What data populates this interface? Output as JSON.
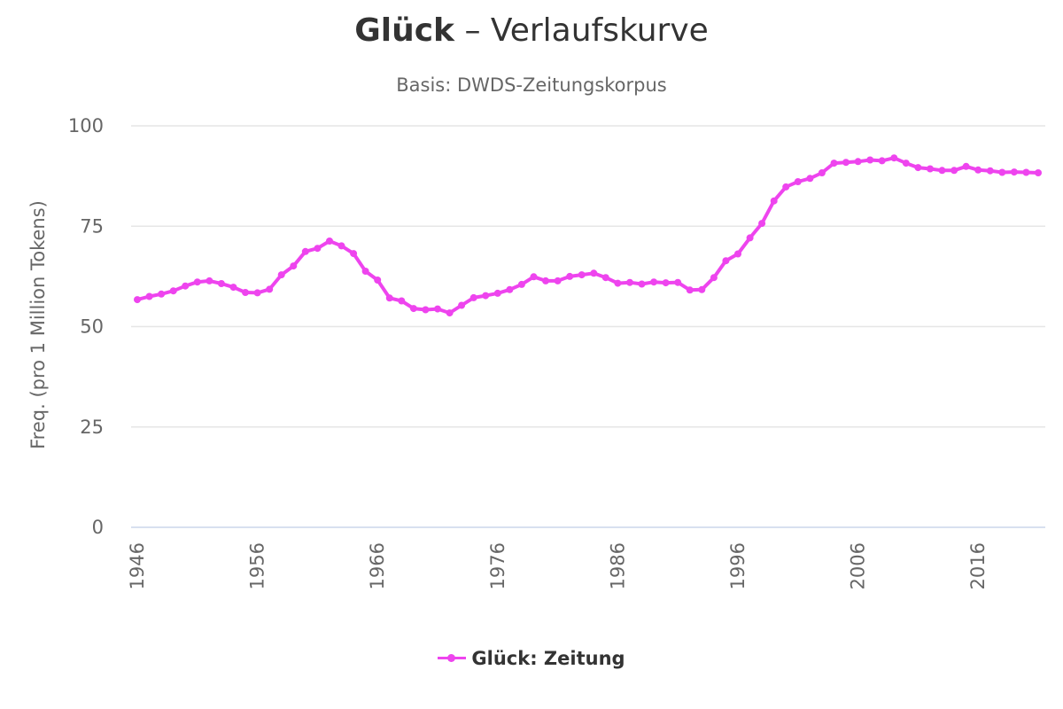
{
  "title": {
    "word": "Glück",
    "rest": " – Verlaufskurve"
  },
  "subtitle": "Basis: DWDS-Zeitungskorpus",
  "legend": {
    "label": "Glück: Zeitung"
  },
  "colors": {
    "series": "#ee44ee",
    "grid": "#e6e6e6",
    "axis": "#ccd6eb",
    "text": "#666666"
  },
  "chart_data": {
    "type": "line",
    "title": "Glück – Verlaufskurve",
    "subtitle": "Basis: DWDS-Zeitungskorpus",
    "xlabel": "",
    "ylabel": "Freq. (pro 1 Million Tokens)",
    "ylim": [
      0,
      100
    ],
    "xlim": [
      1946,
      2021
    ],
    "yticks": [
      0,
      25,
      50,
      75,
      100
    ],
    "xticks": [
      1946,
      1956,
      1966,
      1976,
      1986,
      1996,
      2006,
      2016
    ],
    "grid": true,
    "legend_position": "bottom",
    "series": [
      {
        "name": "Glück: Zeitung",
        "x": [
          1946,
          1947,
          1948,
          1949,
          1950,
          1951,
          1952,
          1953,
          1954,
          1955,
          1956,
          1957,
          1958,
          1959,
          1960,
          1961,
          1962,
          1963,
          1964,
          1965,
          1966,
          1967,
          1968,
          1969,
          1970,
          1971,
          1972,
          1973,
          1974,
          1975,
          1976,
          1977,
          1978,
          1979,
          1980,
          1981,
          1982,
          1983,
          1984,
          1985,
          1986,
          1987,
          1988,
          1989,
          1990,
          1991,
          1992,
          1993,
          1994,
          1995,
          1996,
          1997,
          1998,
          1999,
          2000,
          2001,
          2002,
          2003,
          2004,
          2005,
          2006,
          2007,
          2008,
          2009,
          2010,
          2011,
          2012,
          2013,
          2014,
          2015,
          2016,
          2017,
          2018,
          2019,
          2020,
          2021
        ],
        "y": [
          56.7,
          57.5,
          58.1,
          58.9,
          60.1,
          61.1,
          61.4,
          60.7,
          59.8,
          58.5,
          58.4,
          59.3,
          62.9,
          65.1,
          68.7,
          69.5,
          71.3,
          70.1,
          68.2,
          63.8,
          61.6,
          57.1,
          56.4,
          54.5,
          54.2,
          54.4,
          53.4,
          55.3,
          57.2,
          57.7,
          58.3,
          59.2,
          60.5,
          62.4,
          61.4,
          61.4,
          62.5,
          62.9,
          63.3,
          62.2,
          60.8,
          61.0,
          60.6,
          61.1,
          60.9,
          61.0,
          59.1,
          59.2,
          62.2,
          66.4,
          68.1,
          72.1,
          75.7,
          81.3,
          84.8,
          86.1,
          86.9,
          88.3,
          90.7,
          90.9,
          91.1,
          91.5,
          91.3,
          92.0,
          90.7,
          89.6,
          89.3,
          88.9,
          88.9,
          89.9,
          89.0,
          88.8,
          88.4,
          88.5,
          88.4,
          88.3
        ]
      }
    ]
  }
}
